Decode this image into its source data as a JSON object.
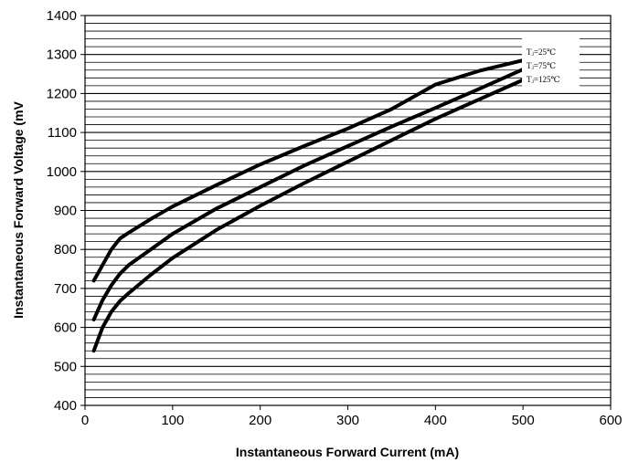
{
  "chart_data": {
    "type": "line",
    "title": "",
    "xlabel": "Instantaneous Forward Current (mA)",
    "ylabel": "Instantaneous Forward Voltage (mV",
    "xlim": [
      0,
      600
    ],
    "ylim": [
      400,
      1400
    ],
    "xticks": [
      0,
      100,
      200,
      300,
      400,
      500,
      600
    ],
    "yticks": [
      400,
      500,
      600,
      700,
      800,
      900,
      1000,
      1100,
      1200,
      1300,
      1400
    ],
    "xtick_labels": [
      "0",
      "100",
      "200",
      "300",
      "400",
      "500",
      "600"
    ],
    "ytick_labels": [
      "400",
      "500",
      "600",
      "700",
      "800",
      "900",
      "1000",
      "1100",
      "1200",
      "1300",
      "1400"
    ],
    "grid": {
      "horizontal_step": 20,
      "vertical": false
    },
    "legend_position": "top-right",
    "series": [
      {
        "name": "Tⱼ=25℃",
        "color": "#000000",
        "points": [
          [
            10,
            720
          ],
          [
            20,
            760
          ],
          [
            30,
            800
          ],
          [
            40,
            828
          ],
          [
            50,
            843
          ],
          [
            75,
            878
          ],
          [
            100,
            910
          ],
          [
            150,
            965
          ],
          [
            200,
            1018
          ],
          [
            250,
            1065
          ],
          [
            300,
            1110
          ],
          [
            350,
            1160
          ],
          [
            400,
            1223
          ],
          [
            450,
            1258
          ],
          [
            500,
            1285
          ]
        ]
      },
      {
        "name": "Tⱼ=75℃",
        "color": "#000000",
        "points": [
          [
            10,
            620
          ],
          [
            20,
            670
          ],
          [
            30,
            708
          ],
          [
            40,
            738
          ],
          [
            50,
            760
          ],
          [
            75,
            800
          ],
          [
            100,
            840
          ],
          [
            150,
            905
          ],
          [
            200,
            960
          ],
          [
            250,
            1015
          ],
          [
            300,
            1065
          ],
          [
            350,
            1115
          ],
          [
            400,
            1163
          ],
          [
            450,
            1212
          ],
          [
            500,
            1262
          ]
        ]
      },
      {
        "name": "Tⱼ=125℃",
        "color": "#000000",
        "points": [
          [
            10,
            540
          ],
          [
            20,
            600
          ],
          [
            30,
            640
          ],
          [
            40,
            668
          ],
          [
            50,
            688
          ],
          [
            75,
            735
          ],
          [
            100,
            778
          ],
          [
            150,
            850
          ],
          [
            200,
            912
          ],
          [
            250,
            970
          ],
          [
            300,
            1025
          ],
          [
            350,
            1080
          ],
          [
            400,
            1135
          ],
          [
            450,
            1185
          ],
          [
            500,
            1235
          ]
        ]
      }
    ]
  }
}
